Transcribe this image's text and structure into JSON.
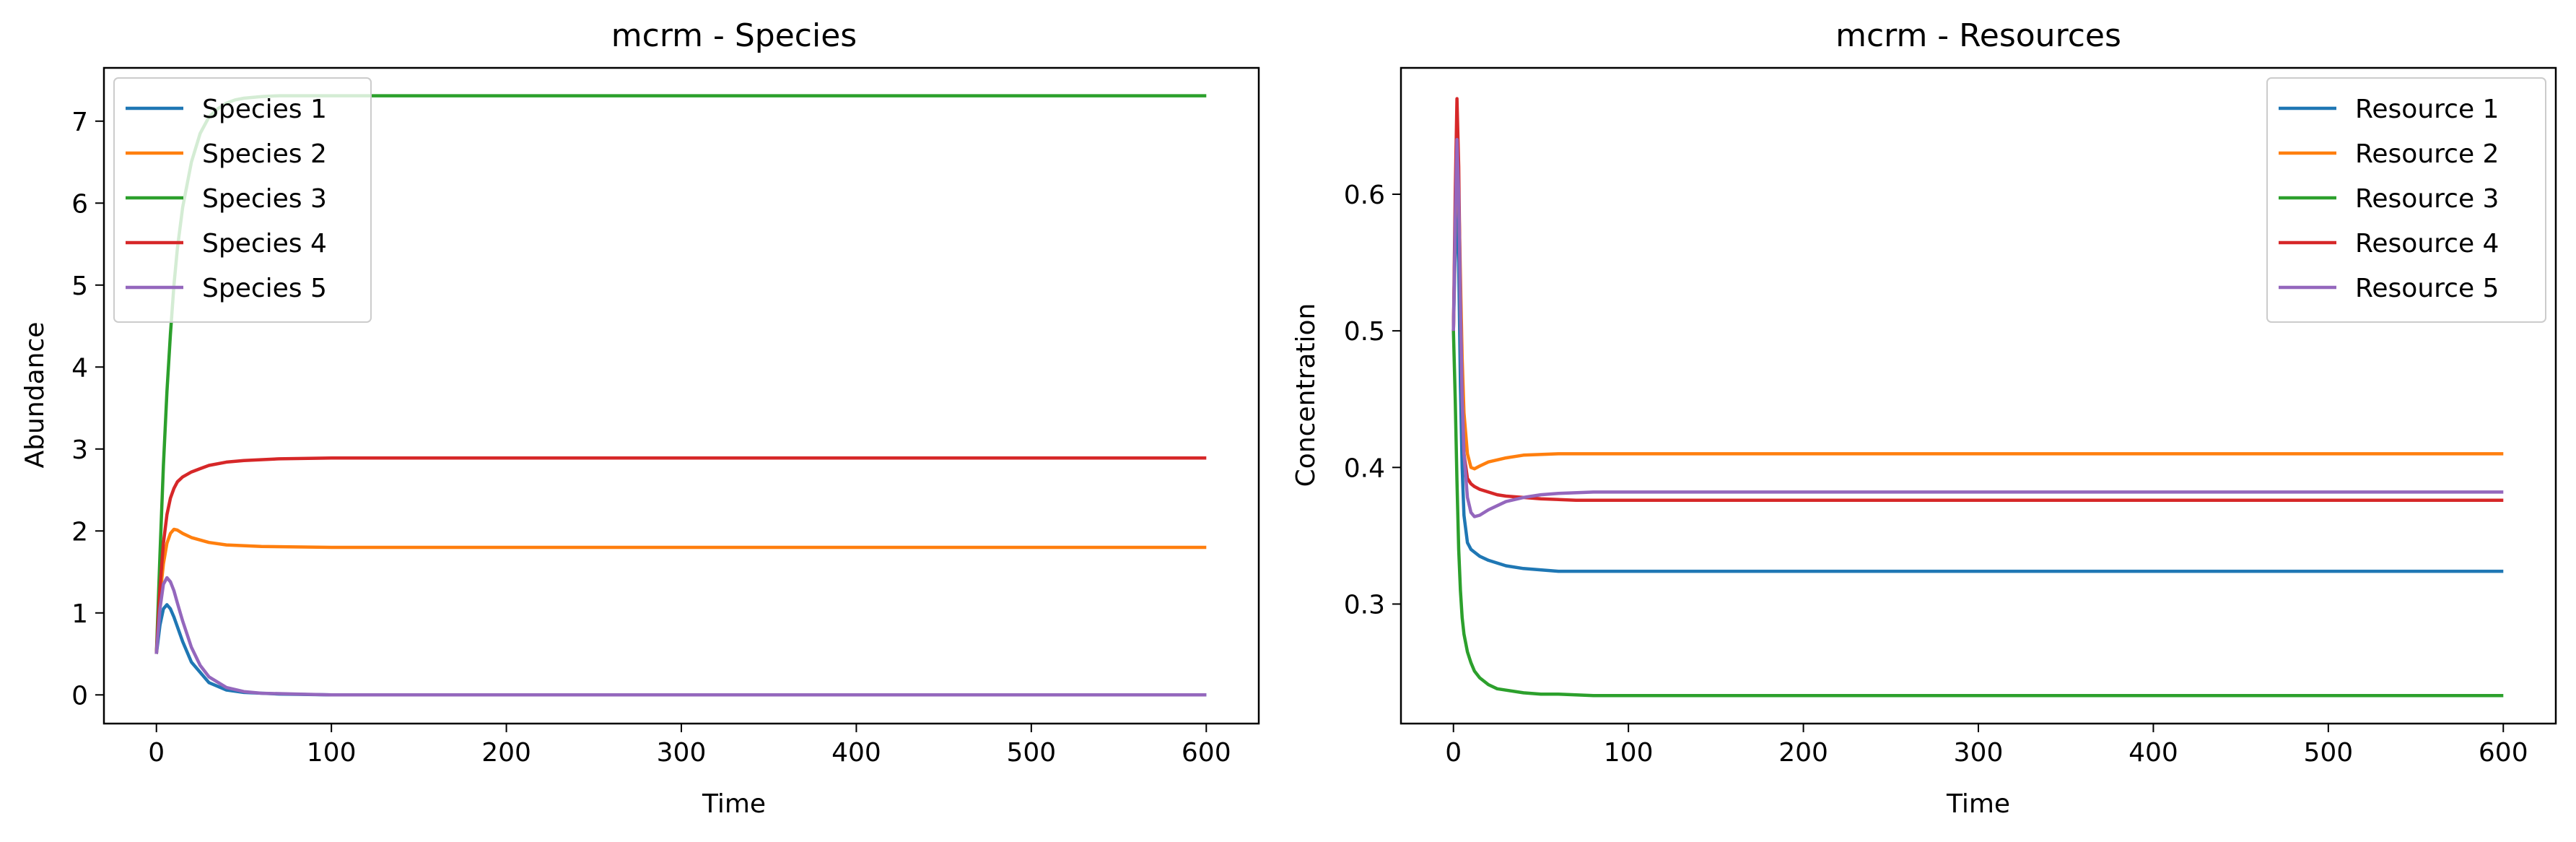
{
  "chart_data": [
    {
      "type": "line",
      "title": "mcrm - Species",
      "xlabel": "Time",
      "ylabel": "Abundance",
      "xlim": [
        -30,
        630
      ],
      "ylim": [
        -0.35,
        7.65
      ],
      "xticks": [
        0,
        100,
        200,
        300,
        400,
        500,
        600
      ],
      "yticks": [
        0,
        1,
        2,
        3,
        4,
        5,
        6,
        7
      ],
      "xtick_labels": [
        "0",
        "100",
        "200",
        "300",
        "400",
        "500",
        "600"
      ],
      "ytick_labels": [
        "0",
        "1",
        "2",
        "3",
        "4",
        "5",
        "6",
        "7"
      ],
      "grid": false,
      "legend_position": "upper left",
      "series": [
        {
          "name": "Species 1",
          "color": "#1f77b4",
          "x": [
            0,
            2,
            4,
            6,
            8,
            10,
            15,
            20,
            30,
            40,
            50,
            70,
            100,
            150,
            200,
            300,
            400,
            500,
            600
          ],
          "y": [
            0.5,
            0.85,
            1.05,
            1.1,
            1.05,
            0.95,
            0.65,
            0.4,
            0.15,
            0.06,
            0.03,
            0.01,
            0.0,
            0.0,
            0.0,
            0.0,
            0.0,
            0.0,
            0.0
          ]
        },
        {
          "name": "Species 2",
          "color": "#ff7f0e",
          "x": [
            0,
            2,
            4,
            6,
            8,
            10,
            12,
            15,
            20,
            30,
            40,
            60,
            100,
            150,
            200,
            300,
            400,
            500,
            600
          ],
          "y": [
            0.5,
            1.2,
            1.6,
            1.85,
            1.97,
            2.02,
            2.01,
            1.97,
            1.92,
            1.86,
            1.83,
            1.81,
            1.8,
            1.8,
            1.8,
            1.8,
            1.8,
            1.8,
            1.8
          ]
        },
        {
          "name": "Species 3",
          "color": "#2ca02c",
          "x": [
            0,
            2,
            4,
            6,
            8,
            10,
            12,
            15,
            20,
            25,
            30,
            35,
            40,
            45,
            50,
            60,
            70,
            100,
            200,
            300,
            400,
            500,
            600
          ],
          "y": [
            0.5,
            1.7,
            2.8,
            3.7,
            4.4,
            5.0,
            5.45,
            5.95,
            6.5,
            6.85,
            7.05,
            7.15,
            7.22,
            7.26,
            7.28,
            7.3,
            7.31,
            7.31,
            7.31,
            7.31,
            7.31,
            7.31,
            7.31
          ]
        },
        {
          "name": "Species 4",
          "color": "#d62728",
          "x": [
            0,
            2,
            4,
            6,
            8,
            10,
            12,
            15,
            20,
            25,
            30,
            40,
            50,
            70,
            100,
            150,
            200,
            300,
            400,
            500,
            600
          ],
          "y": [
            0.5,
            1.3,
            1.85,
            2.2,
            2.4,
            2.52,
            2.6,
            2.66,
            2.72,
            2.76,
            2.8,
            2.84,
            2.86,
            2.88,
            2.89,
            2.89,
            2.89,
            2.89,
            2.89,
            2.89,
            2.89
          ]
        },
        {
          "name": "Species 5",
          "color": "#9467bd",
          "x": [
            0,
            2,
            4,
            6,
            8,
            10,
            12,
            15,
            20,
            25,
            30,
            40,
            50,
            60,
            80,
            100,
            150,
            200,
            300,
            400,
            500,
            600
          ],
          "y": [
            0.5,
            1.05,
            1.35,
            1.43,
            1.38,
            1.27,
            1.12,
            0.9,
            0.58,
            0.36,
            0.22,
            0.09,
            0.04,
            0.02,
            0.01,
            0.0,
            0.0,
            0.0,
            0.0,
            0.0,
            0.0,
            0.0
          ]
        }
      ]
    },
    {
      "type": "line",
      "title": "mcrm - Resources",
      "xlabel": "Time",
      "ylabel": "Concentration",
      "xlim": [
        -30,
        630
      ],
      "ylim": [
        0.2125,
        0.6925
      ],
      "xticks": [
        0,
        100,
        200,
        300,
        400,
        500,
        600
      ],
      "yticks": [
        0.3,
        0.4,
        0.5,
        0.6
      ],
      "xtick_labels": [
        "0",
        "100",
        "200",
        "300",
        "400",
        "500",
        "600"
      ],
      "ytick_labels": [
        "0.3",
        "0.4",
        "0.5",
        "0.6"
      ],
      "grid": false,
      "legend_position": "upper right",
      "series": [
        {
          "name": "Resource 1",
          "color": "#1f77b4",
          "x": [
            0,
            1,
            2,
            3,
            4,
            5,
            6,
            8,
            10,
            12,
            15,
            20,
            30,
            40,
            60,
            100,
            150,
            200,
            300,
            400,
            500,
            600
          ],
          "y": [
            0.5,
            0.56,
            0.59,
            0.55,
            0.46,
            0.4,
            0.365,
            0.345,
            0.34,
            0.338,
            0.335,
            0.332,
            0.328,
            0.326,
            0.324,
            0.324,
            0.324,
            0.324,
            0.324,
            0.324,
            0.324,
            0.324
          ]
        },
        {
          "name": "Resource 2",
          "color": "#ff7f0e",
          "x": [
            0,
            1,
            2,
            3,
            4,
            5,
            6,
            8,
            10,
            12,
            15,
            20,
            30,
            40,
            60,
            80,
            100,
            150,
            200,
            300,
            400,
            500,
            600
          ],
          "y": [
            0.5,
            0.58,
            0.62,
            0.6,
            0.54,
            0.48,
            0.44,
            0.41,
            0.4,
            0.399,
            0.401,
            0.404,
            0.407,
            0.409,
            0.41,
            0.41,
            0.41,
            0.41,
            0.41,
            0.41,
            0.41,
            0.41,
            0.41
          ]
        },
        {
          "name": "Resource 3",
          "color": "#2ca02c",
          "x": [
            0,
            1,
            2,
            3,
            4,
            5,
            6,
            8,
            10,
            12,
            15,
            20,
            25,
            30,
            40,
            50,
            60,
            80,
            100,
            150,
            200,
            300,
            400,
            500,
            600
          ],
          "y": [
            0.5,
            0.45,
            0.39,
            0.34,
            0.31,
            0.29,
            0.278,
            0.265,
            0.257,
            0.251,
            0.246,
            0.241,
            0.238,
            0.237,
            0.235,
            0.234,
            0.234,
            0.233,
            0.233,
            0.233,
            0.233,
            0.233,
            0.233,
            0.233,
            0.233
          ]
        },
        {
          "name": "Resource 4",
          "color": "#d62728",
          "x": [
            0,
            1,
            2,
            3,
            4,
            5,
            6,
            8,
            10,
            12,
            15,
            20,
            25,
            30,
            40,
            50,
            70,
            100,
            200,
            300,
            400,
            500,
            600
          ],
          "y": [
            0.5,
            0.6,
            0.67,
            0.62,
            0.52,
            0.45,
            0.41,
            0.392,
            0.388,
            0.386,
            0.384,
            0.382,
            0.38,
            0.379,
            0.378,
            0.377,
            0.376,
            0.376,
            0.376,
            0.376,
            0.376,
            0.376,
            0.376
          ]
        },
        {
          "name": "Resource 5",
          "color": "#9467bd",
          "x": [
            0,
            1,
            2,
            3,
            4,
            5,
            6,
            8,
            10,
            12,
            15,
            20,
            25,
            30,
            40,
            50,
            60,
            80,
            100,
            150,
            200,
            300,
            400,
            500,
            600
          ],
          "y": [
            0.5,
            0.58,
            0.64,
            0.6,
            0.52,
            0.45,
            0.41,
            0.378,
            0.367,
            0.364,
            0.365,
            0.369,
            0.372,
            0.375,
            0.378,
            0.38,
            0.381,
            0.382,
            0.382,
            0.382,
            0.382,
            0.382,
            0.382,
            0.382,
            0.382
          ]
        }
      ]
    }
  ]
}
